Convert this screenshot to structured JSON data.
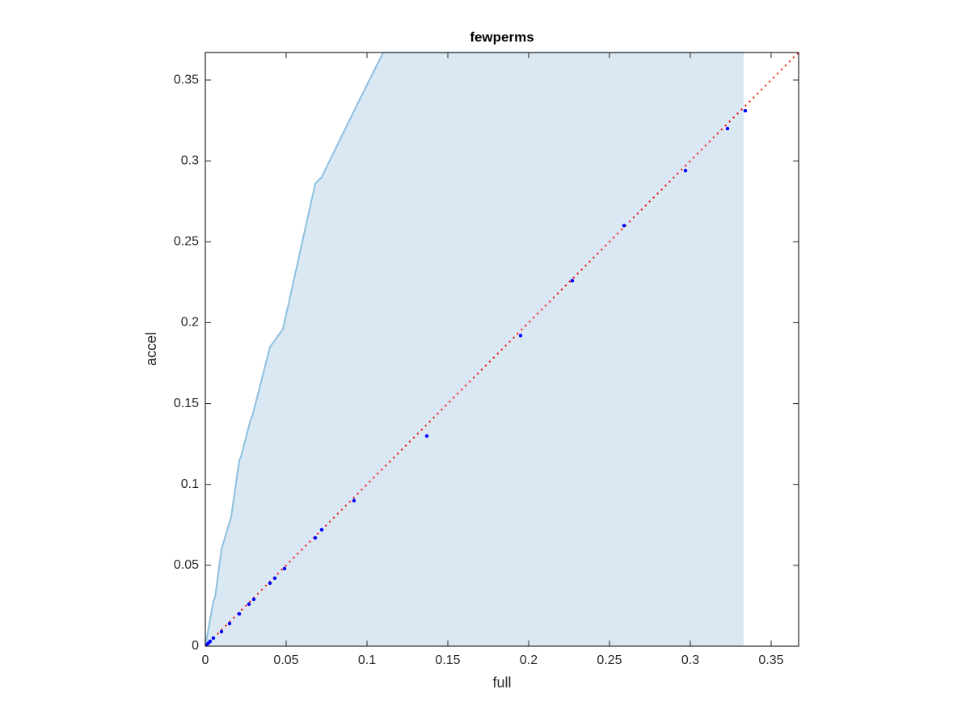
{
  "chart_data": {
    "type": "scatter",
    "title": "fewperms",
    "xlabel": "full",
    "ylabel": "accel",
    "xlim": [
      0,
      0.367
    ],
    "ylim": [
      0,
      0.367
    ],
    "xticks": [
      0,
      0.05,
      0.1,
      0.15,
      0.2,
      0.25,
      0.3,
      0.35
    ],
    "yticks": [
      0,
      0.05,
      0.1,
      0.15,
      0.2,
      0.25,
      0.3,
      0.35
    ],
    "box": true,
    "series": [
      {
        "type": "area",
        "color": "#d9e8f3",
        "line_color": "#8dbfdf",
        "x": [
          0,
          0.005,
          0.006,
          0.01,
          0.016,
          0.021,
          0.022,
          0.028,
          0.029,
          0.04,
          0.048,
          0.068,
          0.072,
          0.093,
          0.11,
          0.333
        ],
        "values": [
          0,
          0.028,
          0.03,
          0.06,
          0.08,
          0.115,
          0.117,
          0.14,
          0.142,
          0.185,
          0.196,
          0.286,
          0.29,
          0.333,
          0.367,
          0.367
        ]
      },
      {
        "type": "line",
        "color": "#ff0000",
        "dash": true,
        "x": [
          0,
          0.367
        ],
        "values": [
          0,
          0.367
        ]
      },
      {
        "type": "scatter",
        "color": "#0000ff",
        "x": [
          0.001,
          0.002,
          0.003,
          0.005,
          0.01,
          0.015,
          0.021,
          0.027,
          0.03,
          0.04,
          0.043,
          0.049,
          0.068,
          0.072,
          0.092,
          0.137,
          0.195,
          0.227,
          0.259,
          0.297,
          0.323,
          0.334
        ],
        "values": [
          0.001,
          0.002,
          0.003,
          0.005,
          0.009,
          0.014,
          0.02,
          0.026,
          0.029,
          0.039,
          0.042,
          0.048,
          0.067,
          0.072,
          0.09,
          0.13,
          0.192,
          0.226,
          0.26,
          0.294,
          0.32,
          0.331
        ]
      }
    ]
  }
}
